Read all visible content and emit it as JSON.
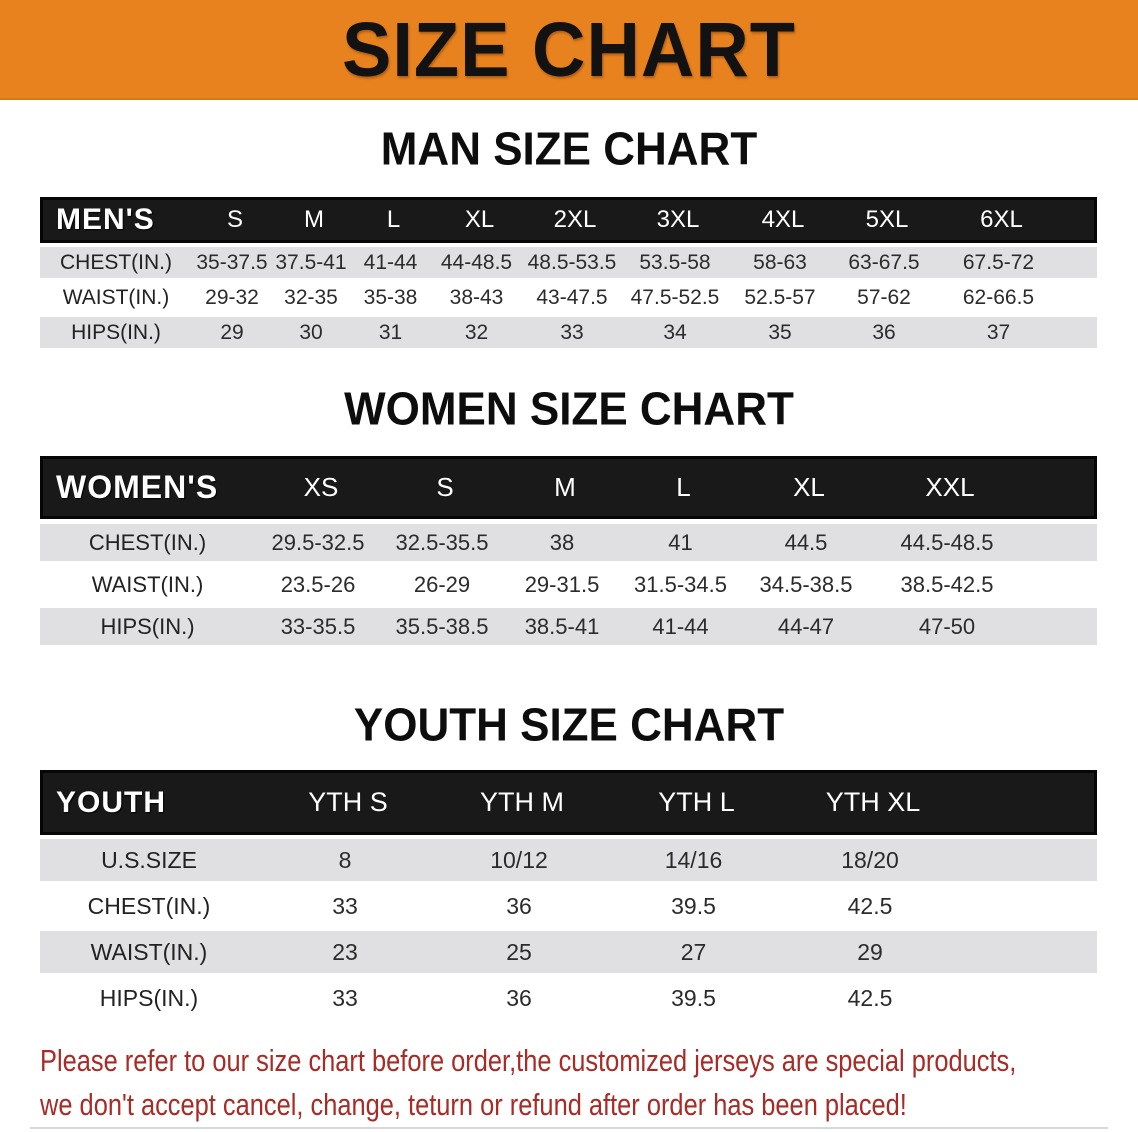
{
  "banner": {
    "title": "SIZE CHART"
  },
  "colors": {
    "banner_orange": "#E8821E",
    "header_bar_black": "#191919",
    "row_gray": "#E0E0E3",
    "disclaimer_red": "#A82B26"
  },
  "chart_data": [
    {
      "type": "table",
      "title": "MAN SIZE CHART",
      "header": [
        "MEN'S",
        "S",
        "M",
        "L",
        "XL",
        "2XL",
        "3XL",
        "4XL",
        "5XL",
        "6XL"
      ],
      "rows": [
        [
          "CHEST(IN.)",
          "35-37.5",
          "37.5-41",
          "41-44",
          "44-48.5",
          "48.5-53.5",
          "53.5-58",
          "58-63",
          "63-67.5",
          "67.5-72"
        ],
        [
          "WAIST(IN.)",
          "29-32",
          "32-35",
          "35-38",
          "38-43",
          "43-47.5",
          "47.5-52.5",
          "52.5-57",
          "57-62",
          "62-66.5"
        ],
        [
          "HIPS(IN.)",
          "29",
          "30",
          "31",
          "32",
          "33",
          "34",
          "35",
          "36",
          "37"
        ]
      ]
    },
    {
      "type": "table",
      "title": "WOMEN SIZE CHART",
      "header": [
        "WOMEN'S",
        "XS",
        "S",
        "M",
        "L",
        "XL",
        "XXL"
      ],
      "rows": [
        [
          "CHEST(IN.)",
          "29.5-32.5",
          "32.5-35.5",
          "38",
          "41",
          "44.5",
          "44.5-48.5"
        ],
        [
          "WAIST(IN.)",
          "23.5-26",
          "26-29",
          "29-31.5",
          "31.5-34.5",
          "34.5-38.5",
          "38.5-42.5"
        ],
        [
          "HIPS(IN.)",
          "33-35.5",
          "35.5-38.5",
          "38.5-41",
          "41-44",
          "44-47",
          "47-50"
        ]
      ]
    },
    {
      "type": "table",
      "title": "YOUTH SIZE CHART",
      "header": [
        "YOUTH",
        "YTH S",
        "YTH M",
        "YTH L",
        "YTH XL"
      ],
      "rows": [
        [
          "U.S.SIZE",
          "8",
          "10/12",
          "14/16",
          "18/20"
        ],
        [
          "CHEST(IN.)",
          "33",
          "36",
          "39.5",
          "42.5"
        ],
        [
          "WAIST(IN.)",
          "23",
          "25",
          "27",
          "29"
        ],
        [
          "HIPS(IN.)",
          "33",
          "36",
          "39.5",
          "42.5"
        ]
      ]
    }
  ],
  "footer": {
    "line1": "Please refer to our size chart before order,the customized jerseys are special products,",
    "line2": "we don't accept cancel, change, teturn or refund after order has been placed!"
  }
}
